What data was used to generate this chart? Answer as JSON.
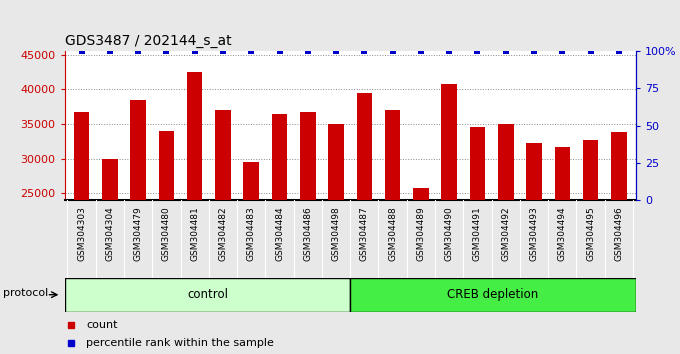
{
  "title": "GDS3487 / 202144_s_at",
  "categories": [
    "GSM304303",
    "GSM304304",
    "GSM304479",
    "GSM304480",
    "GSM304481",
    "GSM304482",
    "GSM304483",
    "GSM304484",
    "GSM304486",
    "GSM304498",
    "GSM304487",
    "GSM304488",
    "GSM304489",
    "GSM304490",
    "GSM304491",
    "GSM304492",
    "GSM304493",
    "GSM304494",
    "GSM304495",
    "GSM304496"
  ],
  "values": [
    36700,
    30000,
    38500,
    34000,
    42500,
    37000,
    29500,
    36500,
    36700,
    35000,
    39500,
    37000,
    25800,
    40800,
    34500,
    35000,
    32300,
    31700,
    32700,
    33800
  ],
  "percentile_values": [
    100,
    100,
    100,
    100,
    100,
    100,
    100,
    100,
    100,
    100,
    100,
    100,
    100,
    100,
    100,
    100,
    100,
    100,
    100,
    100
  ],
  "bar_color": "#cc0000",
  "dot_color": "#0000cc",
  "ylim_left": [
    24000,
    45500
  ],
  "ylim_right": [
    0,
    100
  ],
  "yticks_left": [
    25000,
    30000,
    35000,
    40000,
    45000
  ],
  "yticks_right": [
    0,
    25,
    50,
    75,
    100
  ],
  "control_count": 10,
  "control_label": "control",
  "depletion_label": "CREB depletion",
  "protocol_label": "protocol",
  "legend_count_label": "count",
  "legend_percentile_label": "percentile rank within the sample",
  "background_color": "#e8e8e8",
  "plot_bg": "#ffffff",
  "xtick_bg": "#cccccc",
  "control_bg": "#ccffcc",
  "depletion_bg": "#44ee44"
}
